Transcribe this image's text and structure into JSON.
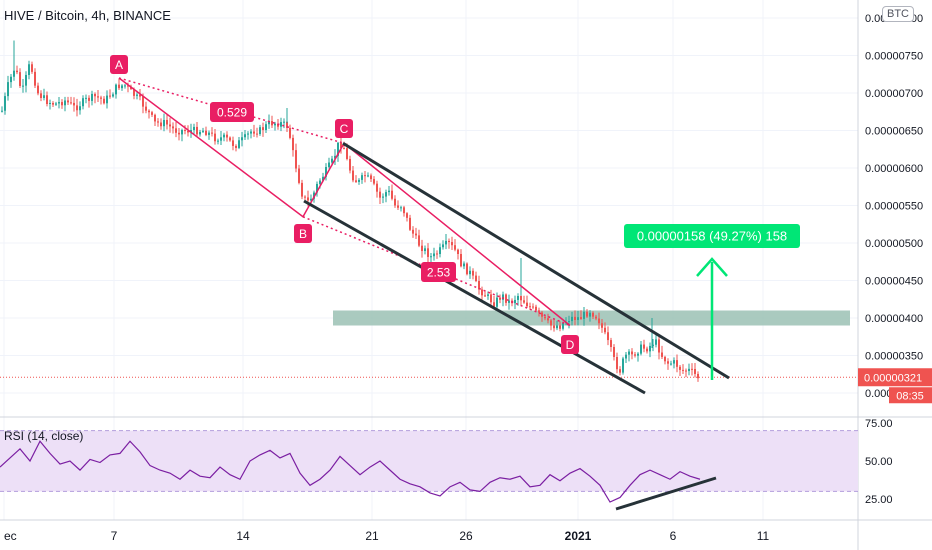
{
  "header": {
    "symbol_title": "HIVE / Bitcoin, 4h, BINANCE",
    "currency_badge": "BTC"
  },
  "rsi_panel": {
    "title": "RSI (14, close)",
    "ticks": [
      "75.00",
      "50.00",
      "25.00"
    ]
  },
  "price_axis": {
    "ticks": [
      "0.00000800",
      "0.00000750",
      "0.00000700",
      "0.00000650",
      "0.00000600",
      "0.00000550",
      "0.00000500",
      "0.00000450",
      "0.00000400",
      "0.00000350",
      "0.00000300"
    ],
    "last_price": "0.00000321",
    "countdown": "08:35"
  },
  "time_axis": {
    "ticks": [
      "ec",
      "7",
      "14",
      "21",
      "26",
      "2021",
      "6",
      "11"
    ]
  },
  "annotations": {
    "point_labels": [
      "A",
      "B",
      "C",
      "D"
    ],
    "ratio_1": "0.529",
    "ratio_2": "2.53",
    "target_box": "0.00000158 (49.27%) 158"
  },
  "colors": {
    "up": "#26a69a",
    "down": "#ef5350",
    "pattern": "#e91e63",
    "channel": "#263238",
    "target": "#00e676",
    "zone": "#9bc1b4",
    "rsi_line": "#7b1fa2",
    "rsi_band": "#ede0f7"
  },
  "chart_data": [
    {
      "type": "candlestick",
      "title": "HIVE / Bitcoin, 4h, BINANCE",
      "ylim": [
        2.98e-06,
        8.2e-06
      ],
      "y_ticks": [
        8e-06,
        7.5e-06,
        7e-06,
        6.5e-06,
        6e-06,
        5.5e-06,
        5e-06,
        4.5e-06,
        4e-06,
        3.5e-06,
        3e-06
      ],
      "x_ticks": [
        "ec",
        "7",
        "14",
        "21",
        "26",
        "2021",
        "6",
        "11"
      ],
      "close_path": [
        [
          0,
          6.65e-06
        ],
        [
          8,
          7.1e-06
        ],
        [
          15,
          7.35e-06
        ],
        [
          22,
          7e-06
        ],
        [
          30,
          7.4e-06
        ],
        [
          38,
          7e-06
        ],
        [
          46,
          6.9e-06
        ],
        [
          55,
          6.85e-06
        ],
        [
          65,
          6.9e-06
        ],
        [
          75,
          6.8e-06
        ],
        [
          85,
          6.9e-06
        ],
        [
          95,
          6.95e-06
        ],
        [
          105,
          6.9e-06
        ],
        [
          112,
          7e-06
        ],
        [
          118,
          7.1e-06
        ],
        [
          125,
          7.1e-06
        ],
        [
          132,
          7e-06
        ],
        [
          140,
          6.9e-06
        ],
        [
          148,
          6.75e-06
        ],
        [
          155,
          6.6e-06
        ],
        [
          165,
          6.6e-06
        ],
        [
          175,
          6.5e-06
        ],
        [
          185,
          6.5e-06
        ],
        [
          195,
          6.5e-06
        ],
        [
          205,
          6.5e-06
        ],
        [
          215,
          6.4e-06
        ],
        [
          225,
          6.4e-06
        ],
        [
          235,
          6.3e-06
        ],
        [
          245,
          6.4e-06
        ],
        [
          252,
          6.5e-06
        ],
        [
          260,
          6.5e-06
        ],
        [
          270,
          6.6e-06
        ],
        [
          280,
          6.6e-06
        ],
        [
          288,
          6.555e-06
        ],
        [
          293,
          6.2e-06
        ],
        [
          298,
          5.9e-06
        ],
        [
          303,
          5.6e-06
        ],
        [
          308,
          5.55e-06
        ],
        [
          313,
          5.636e-06
        ],
        [
          318,
          5.8e-06
        ],
        [
          323,
          5.9e-06
        ],
        [
          328,
          6e-06
        ],
        [
          333,
          6.1e-06
        ],
        [
          338,
          6.3e-06
        ],
        [
          343,
          6.33e-06
        ],
        [
          347,
          6.1e-06
        ],
        [
          352,
          5.9e-06
        ],
        [
          358,
          5.8e-06
        ],
        [
          365,
          5.9e-06
        ],
        [
          372,
          5.8e-06
        ],
        [
          380,
          5.6e-06
        ],
        [
          388,
          5.7e-06
        ],
        [
          395,
          5.5e-06
        ],
        [
          402,
          5.5e-06
        ],
        [
          410,
          5.2e-06
        ],
        [
          418,
          5e-06
        ],
        [
          425,
          4.9e-06
        ],
        [
          432,
          4.8e-06
        ],
        [
          440,
          4.9e-06
        ],
        [
          448,
          5e-06
        ],
        [
          455,
          4.9e-06
        ],
        [
          462,
          4.7e-06
        ],
        [
          470,
          4.6e-06
        ],
        [
          478,
          4.4e-06
        ],
        [
          486,
          4.3e-06
        ],
        [
          494,
          4.2e-06
        ],
        [
          502,
          4.3e-06
        ],
        [
          510,
          4.2e-06
        ],
        [
          518,
          4.3e-06
        ],
        [
          526,
          4.2e-06
        ],
        [
          534,
          4.1e-06
        ],
        [
          542,
          4e-06
        ],
        [
          550,
          3.9e-06
        ],
        [
          560,
          3.9e-06
        ],
        [
          570,
          4e-06
        ],
        [
          580,
          4e-06
        ],
        [
          590,
          4.1e-06
        ],
        [
          598,
          4e-06
        ],
        [
          604,
          3.8e-06
        ],
        [
          610,
          3.6e-06
        ],
        [
          615,
          3.4e-06
        ],
        [
          620,
          3.3e-06
        ],
        [
          625,
          3.5e-06
        ],
        [
          632,
          3.5e-06
        ],
        [
          640,
          3.6e-06
        ],
        [
          648,
          3.6e-06
        ],
        [
          655,
          3.7e-06
        ],
        [
          662,
          3.5e-06
        ],
        [
          668,
          3.4e-06
        ],
        [
          675,
          3.4e-06
        ],
        [
          682,
          3.3e-06
        ],
        [
          690,
          3.3e-06
        ],
        [
          698,
          3.21e-06
        ]
      ],
      "last_price": 3.21e-06,
      "resistance_zone": [
        3.9e-06,
        4.1e-06
      ],
      "labels": [
        "A",
        "B",
        "C",
        "D",
        "0.529",
        "2.53",
        "0.00000158 (49.27%) 158"
      ]
    },
    {
      "type": "line",
      "title": "RSI (14, close)",
      "ylim": [
        12,
        77
      ],
      "y_ticks": [
        75,
        50,
        25
      ],
      "band": [
        30,
        70
      ],
      "x": [
        0,
        10,
        20,
        30,
        40,
        50,
        60,
        70,
        80,
        90,
        100,
        110,
        120,
        130,
        140,
        150,
        160,
        170,
        180,
        190,
        200,
        210,
        220,
        230,
        240,
        250,
        260,
        270,
        280,
        290,
        300,
        310,
        320,
        330,
        340,
        350,
        360,
        370,
        380,
        390,
        400,
        410,
        420,
        430,
        440,
        450,
        460,
        470,
        480,
        490,
        500,
        510,
        520,
        530,
        540,
        550,
        560,
        570,
        580,
        590,
        600,
        610,
        620,
        630,
        640,
        650,
        660,
        670,
        680,
        690,
        700
      ],
      "values": [
        46,
        52,
        58,
        50,
        63,
        55,
        48,
        50,
        44,
        51,
        49,
        54,
        55,
        63,
        56,
        47,
        44,
        42,
        38,
        44,
        40,
        39,
        46,
        41,
        38,
        50,
        54,
        57,
        52,
        55,
        42,
        34,
        38,
        44,
        53,
        47,
        41,
        46,
        50,
        44,
        38,
        35,
        33,
        29,
        27,
        33,
        36,
        31,
        30,
        36,
        39,
        38,
        40,
        33,
        34,
        41,
        37,
        42,
        45,
        40,
        34,
        23,
        26,
        34,
        41,
        44,
        41,
        38,
        43,
        40,
        38
      ]
    }
  ]
}
